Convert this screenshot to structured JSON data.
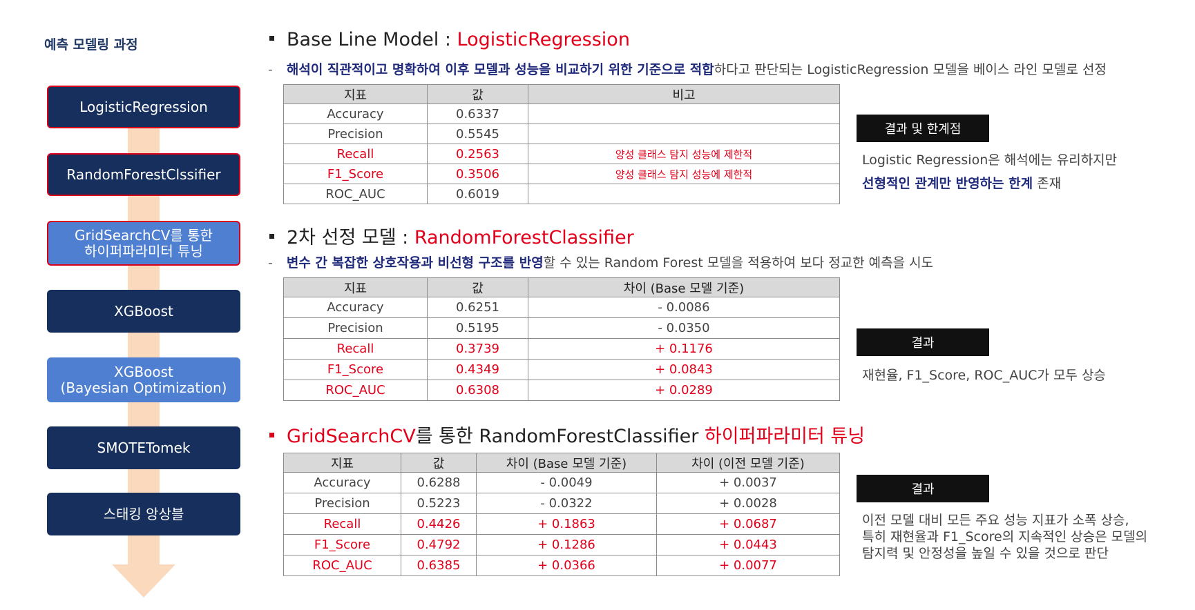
{
  "left": {
    "title": "예측 모델링 과정",
    "steps": [
      {
        "label": "LogisticRegression"
      },
      {
        "label": "RandomForestClssifier"
      },
      {
        "line1": "GridSearchCV를 통한",
        "line2": "하이퍼파라미터 튜닝"
      },
      {
        "label": "XGBoost"
      },
      {
        "line1": "XGBoost",
        "line2": "(Bayesian Optimization)"
      },
      {
        "label": "SMOTETomek"
      },
      {
        "label": "스태킹 앙상블"
      }
    ]
  },
  "section1": {
    "head_prefix": "Base Line Model : ",
    "head_model": "LogisticRegression",
    "desc_dash": "-",
    "desc_highlight": "해석이 직관적이고 명확하여 이후 모델과 성능을 비교하기 위한 기준으로 적합",
    "desc_rest": "하다고 판단되는 LogisticRegression 모델을 베이스 라인 모델로 선정",
    "table": {
      "headers": [
        "지표",
        "값",
        "비고"
      ],
      "rows": [
        [
          "Accuracy",
          "0.6337",
          ""
        ],
        [
          "Precision",
          "0.5545",
          ""
        ],
        [
          "Recall",
          "0.2563",
          "양성 클래스 탐지 성능에 제한적"
        ],
        [
          "F1_Score",
          "0.3506",
          "양성 클래스 탐지 성능에 제한적"
        ],
        [
          "ROC_AUC",
          "0.6019",
          ""
        ]
      ]
    },
    "result_label": "결과 및 한계점",
    "result_line1": "Logistic Regression은 해석에는 유리하지만",
    "result_line2_bold": "선형적인 관계만 반영하는 한계",
    "result_line2_rest": " 존재"
  },
  "section2": {
    "head_prefix": "2차 선정 모델 : ",
    "head_model": "RandomForestClassifier",
    "desc_dash": "-",
    "desc_highlight": "변수 간 복잡한 상호작용과 비선형 구조를 반영",
    "desc_rest": "할 수 있는 Random Forest 모델을 적용하여 보다 정교한 예측을 시도",
    "table": {
      "headers": [
        "지표",
        "값",
        "차이 (Base 모델 기준)"
      ],
      "rows": [
        [
          "Accuracy",
          "0.6251",
          "- 0.0086"
        ],
        [
          "Precision",
          "0.5195",
          "- 0.0350"
        ],
        [
          "Recall",
          "0.3739",
          "+ 0.1176"
        ],
        [
          "F1_Score",
          "0.4349",
          "+ 0.0843"
        ],
        [
          "ROC_AUC",
          "0.6308",
          "+ 0.0289"
        ]
      ]
    },
    "result_label": "결과",
    "result_text": "재현율, F1_Score, ROC_AUC가 모두 상승"
  },
  "section3": {
    "head_red1": "GridSearchCV",
    "head_mid": "를 통한 RandomForestClassifier ",
    "head_red2": "하이퍼파라미터 튜닝",
    "table": {
      "headers": [
        "지표",
        "값",
        "차이 (Base 모델 기준)",
        "차이 (이전 모델 기준)"
      ],
      "rows": [
        [
          "Accuracy",
          "0.6288",
          "- 0.0049",
          "+ 0.0037"
        ],
        [
          "Precision",
          "0.5223",
          "- 0.0322",
          "+ 0.0028"
        ],
        [
          "Recall",
          "0.4426",
          "+ 0.1863",
          "+ 0.0687"
        ],
        [
          "F1_Score",
          "0.4792",
          "+ 0.1286",
          "+ 0.0443"
        ],
        [
          "ROC_AUC",
          "0.6385",
          "+ 0.0366",
          "+ 0.0077"
        ]
      ]
    },
    "result_label": "결과",
    "result_line1": "이전 모델 대비 모든 주요 성능 지표가 소폭 상승,",
    "result_line2": "특히 재현율과 F1_Score의 지속적인 상승은 모델의",
    "result_line3": "탐지력 및 안정성을 높일 수 있을 것으로 판단"
  },
  "colors": {
    "navy": "#172f5c",
    "highlight_step": "#4f7fd1",
    "accent_red": "#e2001a",
    "arrow": "#fbd9bd"
  }
}
